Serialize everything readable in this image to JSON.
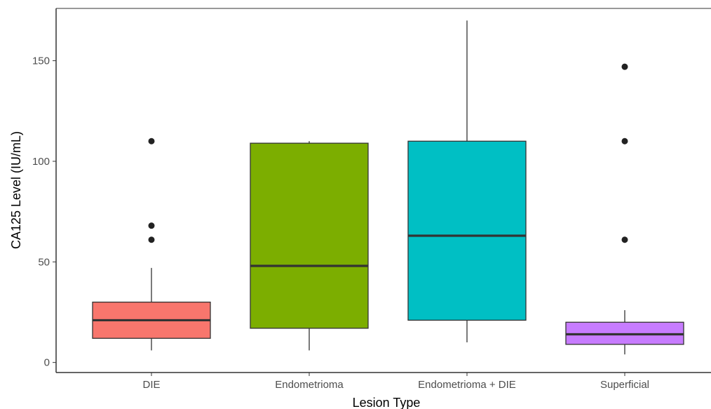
{
  "chart_data": {
    "type": "boxplot",
    "title": "",
    "xlabel": "Lesion Type",
    "ylabel": "CA125 Level (IU/mL)",
    "ylim": [
      -5,
      176
    ],
    "yticks": [
      0,
      50,
      100,
      150
    ],
    "grid": false,
    "legend": "none",
    "categories": [
      "DIE",
      "Endometrioma",
      "Endometrioma + DIE",
      "Superficial"
    ],
    "boxes": [
      {
        "category": "DIE",
        "color": "#F8766D",
        "whisker_low": 6,
        "q1": 12,
        "median": 21,
        "q3": 30,
        "whisker_high": 47,
        "outliers": [
          61,
          68,
          110
        ]
      },
      {
        "category": "Endometrioma",
        "color": "#7CAE00",
        "whisker_low": 6,
        "q1": 17,
        "median": 48,
        "q3": 109,
        "whisker_high": 110,
        "outliers": []
      },
      {
        "category": "Endometrioma + DIE",
        "color": "#00BFC4",
        "whisker_low": 10,
        "q1": 21,
        "median": 63,
        "q3": 110,
        "whisker_high": 170,
        "outliers": []
      },
      {
        "category": "Superficial",
        "color": "#C77CFF",
        "whisker_low": 4,
        "q1": 9,
        "median": 14,
        "q3": 20,
        "whisker_high": 26,
        "outliers": [
          61,
          110,
          147
        ]
      }
    ]
  }
}
